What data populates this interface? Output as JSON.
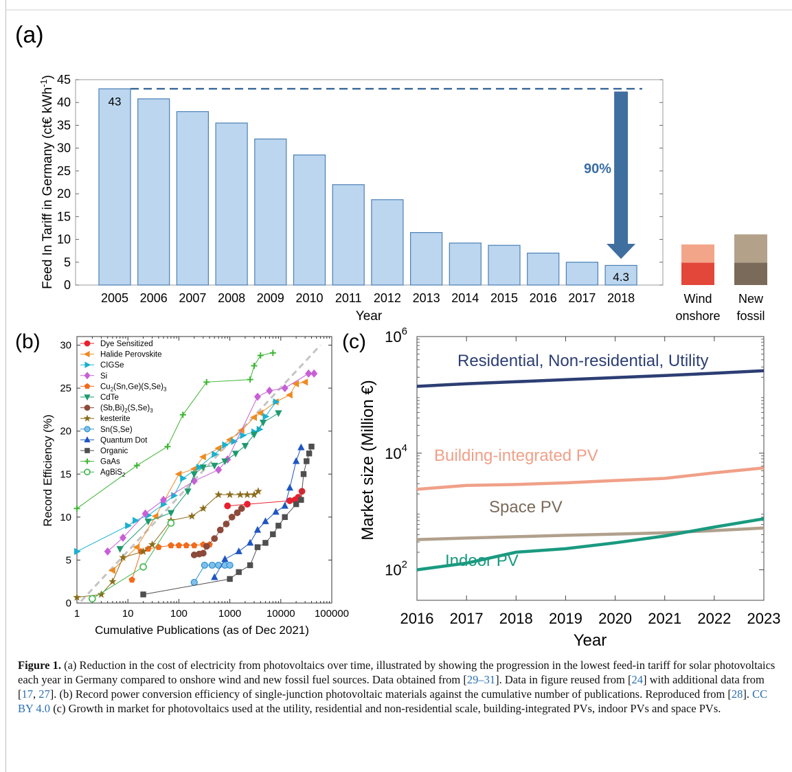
{
  "colors": {
    "bar_fill": "#bcd6ef",
    "bar_stroke": "#4a7fb5",
    "arrow": "#3f6f9f",
    "pct_text": "#3a6ea5",
    "wind_light": "#f3a58a",
    "wind_dark": "#e2473a",
    "fossil_light": "#b3a18a",
    "fossil_dark": "#7a6a5a",
    "residential": "#2c3e73",
    "bipv": "#f0a088",
    "space": "#b1a08d",
    "indoor": "#1a9a80"
  },
  "panel_labels": {
    "a": "(a)",
    "b": "(b)",
    "c": "(c)"
  },
  "chart_data": [
    {
      "id": "a",
      "type": "bar",
      "title": "",
      "xlabel": "Year",
      "ylabel_main": "Feed In Tariff in Germany (ct€ kWh",
      "ylabel_sup": "-1",
      "ylabel_close": ")",
      "ylim": [
        0,
        45
      ],
      "yticks": [
        0,
        5,
        10,
        15,
        20,
        25,
        30,
        35,
        40,
        45
      ],
      "categories": [
        "2005",
        "2006",
        "2007",
        "2008",
        "2009",
        "2010",
        "2011",
        "2012",
        "2013",
        "2014",
        "2015",
        "2016",
        "2017",
        "2018"
      ],
      "values": [
        43,
        40.8,
        38,
        35.5,
        32,
        28.5,
        22,
        18.7,
        11.5,
        9.2,
        8.7,
        7,
        5,
        4.3
      ],
      "annotations": {
        "first_value_label": "43",
        "last_value_label": "4.3",
        "reduction_label": "90%"
      },
      "comparison": {
        "wind": {
          "label_line1": "Wind",
          "label_line2": "onshore",
          "low": 4.9,
          "high": 8.9
        },
        "fossil": {
          "label_line1": "New",
          "label_line2": "fossil",
          "low": 4.9,
          "high": 11.1
        }
      }
    },
    {
      "id": "b",
      "type": "scatter",
      "title": "",
      "xlabel": "Cumulative Publications (as of Dec 2021)",
      "ylabel": "Record Efficiency (%)",
      "xscale": "log",
      "xlim": [
        1,
        100000
      ],
      "ylim": [
        0,
        31
      ],
      "xticks": [
        1,
        10,
        100,
        1000,
        10000,
        100000
      ],
      "xtick_labels": [
        "1",
        "10",
        "100",
        "1000",
        "10000",
        "100000"
      ],
      "yticks": [
        0,
        5,
        10,
        15,
        20,
        25,
        30
      ],
      "trend_line": [
        [
          1.2,
          0.2
        ],
        [
          60000,
          30
        ]
      ],
      "series": [
        {
          "name": "Dye Sensitized",
          "color": "#e8212e",
          "marker": "circle",
          "points": [
            [
              900,
              11.3
            ],
            [
              2200,
              11.5
            ],
            [
              15000,
              11.9
            ],
            [
              19000,
              12.0
            ],
            [
              22000,
              12.3
            ],
            [
              26000,
              13.0
            ]
          ]
        },
        {
          "name": "Halide Perovskite",
          "color": "#ee8b22",
          "marker": "triangle-left",
          "points": [
            [
              5,
              3.8
            ],
            [
              15,
              6.5
            ],
            [
              35,
              10.1
            ],
            [
              100,
              15.0
            ],
            [
              200,
              15.6
            ],
            [
              300,
              17.0
            ],
            [
              600,
              18.0
            ],
            [
              1000,
              19.0
            ],
            [
              1700,
              20.1
            ],
            [
              3000,
              21.6
            ],
            [
              4000,
              22.1
            ],
            [
              8000,
              23.4
            ],
            [
              15000,
              24.2
            ],
            [
              20000,
              25.5
            ],
            [
              30000,
              25.7
            ]
          ]
        },
        {
          "name": "CIGSe",
          "color": "#1ab1cf",
          "marker": "triangle-right",
          "points": [
            [
              1,
              6
            ],
            [
              10,
              9
            ],
            [
              14,
              9.6
            ],
            [
              25,
              10.2
            ],
            [
              50,
              11.5
            ],
            [
              80,
              12.5
            ],
            [
              120,
              14.5
            ],
            [
              250,
              15.8
            ],
            [
              500,
              17.3
            ],
            [
              800,
              18.4
            ],
            [
              1200,
              18.8
            ],
            [
              1800,
              19.5
            ],
            [
              3000,
              19.9
            ],
            [
              3800,
              20.2
            ],
            [
              5000,
              21.7
            ],
            [
              8000,
              23.4
            ]
          ]
        },
        {
          "name": "Si",
          "color": "#c85fd6",
          "marker": "diamond",
          "points": [
            [
              4,
              6
            ],
            [
              8,
              7.6
            ],
            [
              22,
              10.4
            ],
            [
              50,
              12
            ],
            [
              200,
              14.2
            ],
            [
              600,
              15.5
            ],
            [
              900,
              16.7
            ],
            [
              3500,
              24.0
            ],
            [
              6000,
              24.7
            ],
            [
              12000,
              25.0
            ],
            [
              35000,
              26.7
            ],
            [
              45000,
              26.7
            ]
          ]
        },
        {
          "name": "Cu2(Sn,Ge)(S,Se)3",
          "color": "#f26a1b",
          "marker": "pentagon",
          "points": [
            [
              12,
              2.7
            ],
            [
              18,
              6.0
            ],
            [
              25,
              6.3
            ],
            [
              40,
              6.5
            ],
            [
              70,
              6.7
            ],
            [
              100,
              6.7
            ],
            [
              140,
              6.7
            ],
            [
              200,
              6.7
            ],
            [
              300,
              6.8
            ],
            [
              400,
              6.8
            ]
          ]
        },
        {
          "name": "CdTe",
          "color": "#1f9a6e",
          "marker": "triangle-down",
          "points": [
            [
              7,
              6.3
            ],
            [
              25,
              9.5
            ],
            [
              70,
              10.5
            ],
            [
              150,
              13.0
            ],
            [
              200,
              15.0
            ],
            [
              300,
              15.8
            ],
            [
              500,
              16.0
            ],
            [
              800,
              16.5
            ],
            [
              1300,
              17.4
            ],
            [
              2000,
              18.3
            ],
            [
              3000,
              19.6
            ],
            [
              4500,
              21.0
            ],
            [
              9000,
              22.1
            ]
          ]
        },
        {
          "name": "(Sb,Bi)2(S,Se)3",
          "color": "#8c4a3a",
          "marker": "circle",
          "points": [
            [
              200,
              5.6
            ],
            [
              250,
              5.7
            ],
            [
              300,
              5.8
            ],
            [
              350,
              6.6
            ],
            [
              500,
              7.5
            ],
            [
              650,
              8.5
            ],
            [
              850,
              9.2
            ],
            [
              1100,
              10.0
            ],
            [
              1400,
              10.5
            ],
            [
              1700,
              11.0
            ]
          ]
        },
        {
          "name": "kesterite",
          "color": "#8a6d1c",
          "marker": "star",
          "points": [
            [
              1,
              0.66
            ],
            [
              3,
              1.0
            ],
            [
              5,
              2.5
            ],
            [
              8,
              5.3
            ],
            [
              20,
              6.0
            ],
            [
              30,
              6.8
            ],
            [
              70,
              9.6
            ],
            [
              180,
              10.1
            ],
            [
              300,
              11.0
            ],
            [
              600,
              12.6
            ],
            [
              1000,
              12.6
            ],
            [
              1600,
              12.6
            ],
            [
              2200,
              12.6
            ],
            [
              3000,
              12.6
            ],
            [
              3600,
              13.0
            ]
          ]
        },
        {
          "name": "Sn(S,Se)",
          "color": "#2a8fd0",
          "marker": "circle-grad",
          "points": [
            [
              200,
              2.4
            ],
            [
              320,
              4.4
            ],
            [
              450,
              4.4
            ],
            [
              600,
              4.4
            ],
            [
              800,
              4.4
            ],
            [
              1000,
              4.4
            ]
          ]
        },
        {
          "name": "Quantum Dot",
          "color": "#1f56c1",
          "marker": "triangle-up",
          "points": [
            [
              500,
              3.0
            ],
            [
              800,
              5.1
            ],
            [
              1500,
              6.0
            ],
            [
              2500,
              7.0
            ],
            [
              3500,
              8.5
            ],
            [
              5000,
              9.5
            ],
            [
              8000,
              10.6
            ],
            [
              12000,
              11.3
            ],
            [
              15000,
              13.4
            ],
            [
              20000,
              16.5
            ],
            [
              25000,
              18.1
            ]
          ]
        },
        {
          "name": "Organic",
          "color": "#4f4f4f",
          "marker": "square",
          "points": [
            [
              20,
              1.0
            ],
            [
              1000,
              2.8
            ],
            [
              1500,
              3.6
            ],
            [
              2500,
              4.4
            ],
            [
              3500,
              6.5
            ],
            [
              5000,
              7.0
            ],
            [
              7000,
              8.0
            ],
            [
              9000,
              9.0
            ],
            [
              12000,
              10.0
            ],
            [
              20000,
              11.5
            ],
            [
              25000,
              12.0
            ],
            [
              28000,
              15.0
            ],
            [
              32000,
              16.5
            ],
            [
              36000,
              17.4
            ],
            [
              40000,
              18.2
            ]
          ]
        },
        {
          "name": "GaAs",
          "color": "#3cb532",
          "marker": "plus",
          "points": [
            [
              1,
              11
            ],
            [
              15,
              16.0
            ],
            [
              60,
              18.2
            ],
            [
              120,
              21.9
            ],
            [
              350,
              25.7
            ],
            [
              2500,
              26.0
            ],
            [
              3000,
              27.6
            ],
            [
              4000,
              28.8
            ],
            [
              7000,
              29.1
            ]
          ]
        },
        {
          "name": "AgBiS2",
          "color": "#3cb54a",
          "marker": "circle-open",
          "points": [
            [
              2,
              0.5
            ],
            [
              20,
              4.2
            ],
            [
              70,
              9.3
            ]
          ]
        }
      ],
      "legend_parts": [
        {
          "key": "dye",
          "text": "Dye Sensitized"
        },
        {
          "key": "hp",
          "text": "Halide Perovskite"
        },
        {
          "key": "cigs",
          "text": "CIGSe"
        },
        {
          "key": "si",
          "text": "Si"
        },
        {
          "key": "ctgs",
          "pre": "Cu",
          "s1": "2",
          "mid": "(Sn,Ge)(S,Se)",
          "s2": "3"
        },
        {
          "key": "cdte",
          "text": "CdTe"
        },
        {
          "key": "sbbi",
          "pre": "(Sb,Bi)",
          "s1": "2",
          "mid": "(S,Se)",
          "s2": "3"
        },
        {
          "key": "kest",
          "text": "kesterite"
        },
        {
          "key": "sns",
          "text": "Sn(S,Se)"
        },
        {
          "key": "qd",
          "text": "Quantum Dot"
        },
        {
          "key": "org",
          "text": "Organic"
        },
        {
          "key": "gaas",
          "text": "GaAs"
        },
        {
          "key": "agbi",
          "pre": "AgBiS",
          "s1": "2",
          "mid": "",
          "s2": ""
        }
      ]
    },
    {
      "id": "c",
      "type": "line",
      "title": "",
      "xlabel": "Year",
      "ylabel_main": "Market size (Million €)",
      "yscale": "log",
      "ylim": [
        30,
        1000000
      ],
      "ytick_base": "10",
      "ytick_exps": [
        "2",
        "4",
        "6"
      ],
      "yticks": [
        100,
        10000,
        1000000
      ],
      "x": [
        2016,
        2017,
        2018,
        2019,
        2020,
        2021,
        2022,
        2023
      ],
      "xtick_labels": [
        "2016",
        "2017",
        "2018",
        "2019",
        "2020",
        "2021",
        "2022",
        "2023"
      ],
      "series": [
        {
          "name": "Residential, Non-residential, Utility",
          "color": "#2c3e73",
          "values": [
            140000,
            155000,
            168000,
            182000,
            198000,
            215000,
            235000,
            260000
          ]
        },
        {
          "name": "Building-integrated PV",
          "color": "#f0a088",
          "values": [
            2400,
            2800,
            2900,
            3100,
            3400,
            3700,
            4600,
            5600
          ]
        },
        {
          "name": "Space PV",
          "color": "#b1a08d",
          "values": [
            330,
            350,
            370,
            390,
            410,
            430,
            470,
            520
          ]
        },
        {
          "name": "Indoor PV",
          "color": "#1a9a80",
          "values": [
            100,
            130,
            200,
            230,
            290,
            380,
            540,
            750
          ]
        }
      ]
    }
  ],
  "caption": {
    "label": "Figure 1.",
    "p1": " (a) Reduction in the cost of electricity from photovoltaics over time, illustrated by showing the progression in the lowest feed-in tariff for solar photovoltaics each year in Germany compared to onshore wind and new fossil fuel sources. Data obtained from [",
    "r1": "29–31",
    "p2": "]. Data in figure reused from [",
    "r2": "24",
    "p3": "] with additional data from [",
    "r3": "17",
    "p4": ", ",
    "r4": "27",
    "p5": "]. (b) Record power conversion efficiency of single-junction photovoltaic materials against the cumulative number of publications. Reproduced from [",
    "r5": "28",
    "p6": "]. ",
    "license": "CC BY 4.0",
    "p7": " (c) Growth in market for photovoltaics used at the utility, residential and non-residential scale, building-integrated PVs, indoor PVs and space PVs."
  }
}
